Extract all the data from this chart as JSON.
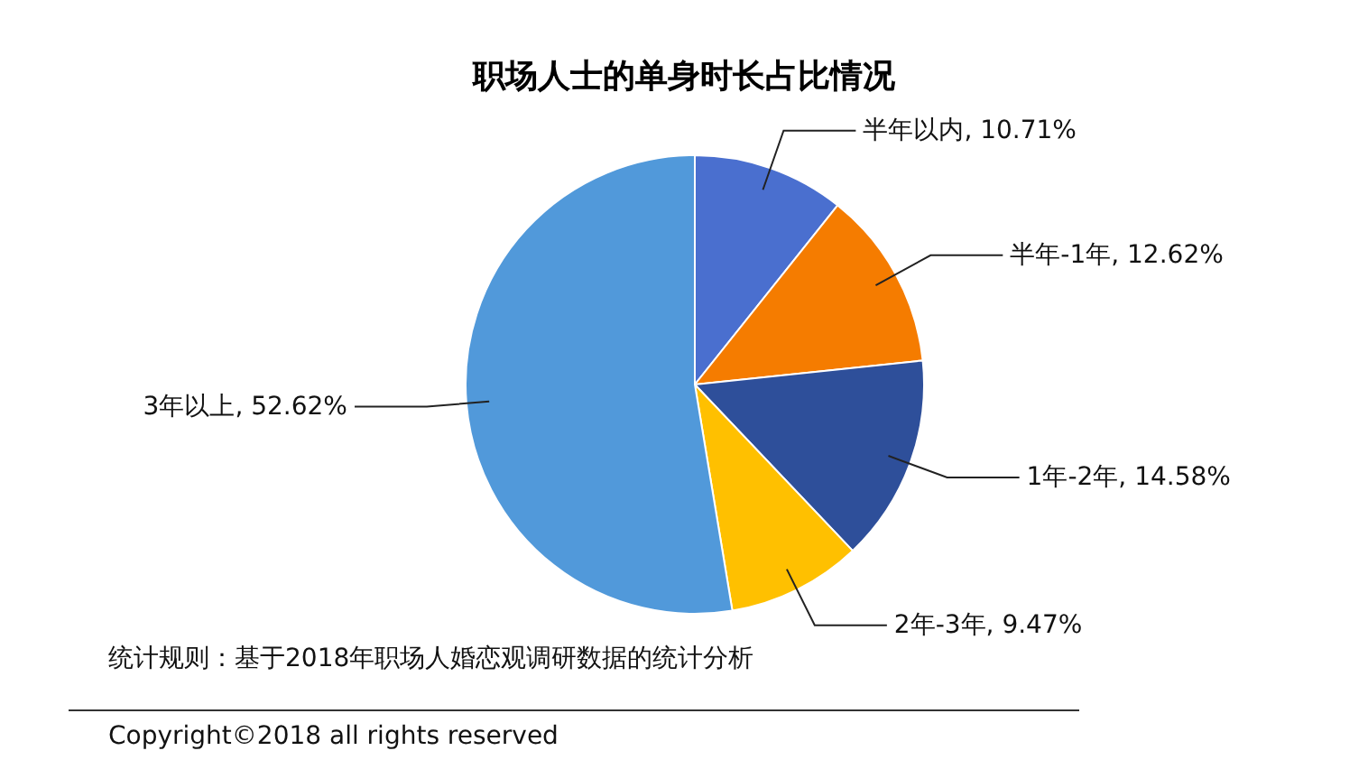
{
  "chart_data": {
    "type": "pie",
    "title": "职场人士的单身时长占比情况",
    "categories": [
      "半年以内",
      "半年-1年",
      "1年-2年",
      "2年-3年",
      "3年以上"
    ],
    "values": [
      10.71,
      12.62,
      14.58,
      9.47,
      52.62
    ],
    "value_labels": [
      "10.71%",
      "12.62%",
      "14.58%",
      "9.47%",
      "52.62%"
    ],
    "colors": [
      "#4a6fcf",
      "#f57c00",
      "#2e4f9a",
      "#ffc000",
      "#5199da"
    ],
    "annotations": [
      "统计规则：基于2018年职场人婚恋观调研数据的统计分析",
      "Copyright©2018 all rights reserved"
    ]
  }
}
